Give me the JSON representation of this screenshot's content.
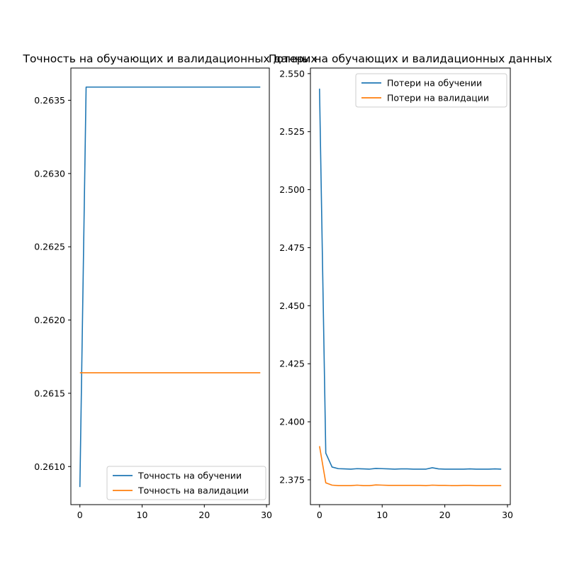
{
  "chart_data": [
    {
      "type": "line",
      "title": "Точность на обучающих и валидационных данных",
      "xlabel": "",
      "ylabel": "",
      "xlim": [
        -1.45,
        30.45
      ],
      "ylim": [
        0.26074,
        0.26372
      ],
      "x_ticks": [
        0,
        10,
        20,
        30
      ],
      "y_ticks": [
        0.261,
        0.2615,
        0.262,
        0.2625,
        0.263,
        0.2635
      ],
      "y_tick_labels": [
        "0.2610",
        "0.2615",
        "0.2620",
        "0.2625",
        "0.2630",
        "0.2635"
      ],
      "legend_position": "lower-right",
      "grid": false,
      "x": [
        0,
        1,
        2,
        3,
        4,
        5,
        6,
        7,
        8,
        9,
        10,
        11,
        12,
        13,
        14,
        15,
        16,
        17,
        18,
        19,
        20,
        21,
        22,
        23,
        24,
        25,
        26,
        27,
        28,
        29
      ],
      "series": [
        {
          "name": "Точность на обучении",
          "color": "#1f77b4",
          "values": [
            0.26086,
            0.26359,
            0.26359,
            0.26359,
            0.26359,
            0.26359,
            0.26359,
            0.26359,
            0.26359,
            0.26359,
            0.26359,
            0.26359,
            0.26359,
            0.26359,
            0.26359,
            0.26359,
            0.26359,
            0.26359,
            0.26359,
            0.26359,
            0.26359,
            0.26359,
            0.26359,
            0.26359,
            0.26359,
            0.26359,
            0.26359,
            0.26359,
            0.26359,
            0.26359
          ]
        },
        {
          "name": "Точность на валидации",
          "color": "#ff7f0e",
          "values": [
            0.26164,
            0.26164,
            0.26164,
            0.26164,
            0.26164,
            0.26164,
            0.26164,
            0.26164,
            0.26164,
            0.26164,
            0.26164,
            0.26164,
            0.26164,
            0.26164,
            0.26164,
            0.26164,
            0.26164,
            0.26164,
            0.26164,
            0.26164,
            0.26164,
            0.26164,
            0.26164,
            0.26164,
            0.26164,
            0.26164,
            0.26164,
            0.26164,
            0.26164,
            0.26164
          ]
        }
      ]
    },
    {
      "type": "line",
      "title": "Потери на обучающих и валидационных данных",
      "xlabel": "",
      "ylabel": "",
      "xlim": [
        -1.45,
        30.45
      ],
      "ylim": [
        2.3643,
        2.5524
      ],
      "x_ticks": [
        0,
        10,
        20,
        30
      ],
      "y_ticks": [
        2.375,
        2.4,
        2.425,
        2.45,
        2.475,
        2.5,
        2.525,
        2.55
      ],
      "y_tick_labels": [
        "2.375",
        "2.400",
        "2.425",
        "2.450",
        "2.475",
        "2.500",
        "2.525",
        "2.550"
      ],
      "legend_position": "upper-right",
      "grid": false,
      "x": [
        0,
        1,
        2,
        3,
        4,
        5,
        6,
        7,
        8,
        9,
        10,
        11,
        12,
        13,
        14,
        15,
        16,
        17,
        18,
        19,
        20,
        21,
        22,
        23,
        24,
        25,
        26,
        27,
        28,
        29
      ],
      "series": [
        {
          "name": "Потери на обучении",
          "color": "#1f77b4",
          "values": [
            2.5435,
            2.3865,
            2.3805,
            2.3798,
            2.3797,
            2.3796,
            2.3798,
            2.3797,
            2.3796,
            2.3799,
            2.3798,
            2.3797,
            2.3796,
            2.3797,
            2.3797,
            2.3796,
            2.3796,
            2.3796,
            2.3802,
            2.3797,
            2.3796,
            2.3796,
            2.3796,
            2.3796,
            2.3797,
            2.3796,
            2.3796,
            2.3796,
            2.3797,
            2.3796
          ]
        },
        {
          "name": "Потери на валидации",
          "color": "#ff7f0e",
          "values": [
            2.3895,
            2.3737,
            2.3727,
            2.3725,
            2.3725,
            2.3725,
            2.3727,
            2.3725,
            2.3725,
            2.3728,
            2.3727,
            2.3726,
            2.3726,
            2.3726,
            2.3726,
            2.3726,
            2.3726,
            2.3725,
            2.3727,
            2.3726,
            2.3726,
            2.3725,
            2.3725,
            2.3726,
            2.3726,
            2.3725,
            2.3725,
            2.3725,
            2.3725,
            2.3725
          ]
        }
      ]
    }
  ]
}
